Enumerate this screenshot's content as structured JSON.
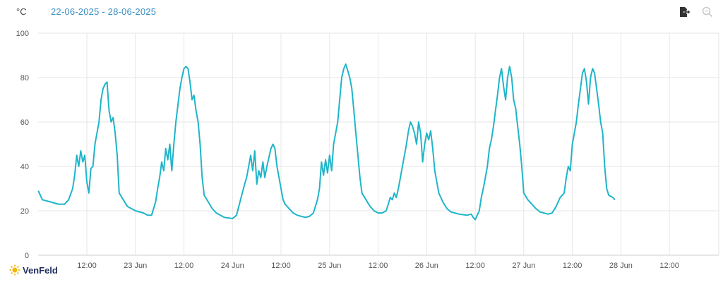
{
  "header": {
    "unit_label": "°C",
    "date_range": "22-06-2025  -  28-06-2025"
  },
  "toolbar": {
    "export_icon": "export-icon",
    "zoom_icon": "zoom-icon"
  },
  "logo": {
    "text": "VenFeld",
    "icon": "sun-icon"
  },
  "colors": {
    "line": "#1fb5c9",
    "grid": "#e6e6e6",
    "axis_text": "#555555",
    "logo_sun": "#f5b400",
    "header_link": "#3a8fc4"
  },
  "chart_data": {
    "type": "line",
    "title": "",
    "xlabel": "",
    "ylabel": "°C",
    "ylim": [
      0,
      100
    ],
    "yticks": [
      0,
      20,
      40,
      60,
      80,
      100
    ],
    "xlim": [
      0,
      168
    ],
    "x_unit": "hours from 22-06-2025 00:00",
    "xticks": [
      {
        "x": 36,
        "label": "12:00"
      },
      {
        "x": 48,
        "label": "23 Jun"
      },
      {
        "x": 60,
        "label": "12:00"
      },
      {
        "x": 72,
        "label": "24 Jun"
      },
      {
        "x": 84,
        "label": "12:00"
      },
      {
        "x": 96,
        "label": "25 Jun"
      },
      {
        "x": 108,
        "label": "12:00"
      },
      {
        "x": 120,
        "label": "26 Jun"
      },
      {
        "x": 132,
        "label": "12:00"
      },
      {
        "x": 144,
        "label": "27 Jun"
      },
      {
        "x": 156,
        "label": "12:00"
      },
      {
        "x": 168,
        "label": "28 Jun"
      },
      {
        "x": 180,
        "label": "12:00"
      }
    ],
    "grid": true,
    "series": [
      {
        "name": "",
        "points": [
          [
            24,
            29
          ],
          [
            25,
            25
          ],
          [
            27,
            24
          ],
          [
            29,
            23
          ],
          [
            30.5,
            23
          ],
          [
            31.5,
            25
          ],
          [
            32.5,
            30
          ],
          [
            33,
            36
          ],
          [
            33.5,
            45
          ],
          [
            34,
            40
          ],
          [
            34.5,
            47
          ],
          [
            35,
            42
          ],
          [
            35.5,
            45
          ],
          [
            36,
            33
          ],
          [
            36.5,
            28
          ],
          [
            37,
            39
          ],
          [
            37.5,
            40
          ],
          [
            38,
            50
          ],
          [
            39,
            60
          ],
          [
            39.5,
            70
          ],
          [
            40,
            75
          ],
          [
            40.5,
            77
          ],
          [
            41,
            78
          ],
          [
            41.5,
            65
          ],
          [
            42,
            60
          ],
          [
            42.5,
            62
          ],
          [
            43,
            55
          ],
          [
            43.5,
            45
          ],
          [
            44,
            28
          ],
          [
            45,
            25
          ],
          [
            46,
            22
          ],
          [
            48,
            20
          ],
          [
            50,
            19
          ],
          [
            51,
            18
          ],
          [
            52,
            18
          ],
          [
            53,
            24
          ],
          [
            53.5,
            30
          ],
          [
            54,
            35
          ],
          [
            54.5,
            42
          ],
          [
            55,
            38
          ],
          [
            55.5,
            48
          ],
          [
            56,
            43
          ],
          [
            56.5,
            50
          ],
          [
            57,
            38
          ],
          [
            57.5,
            50
          ],
          [
            58,
            60
          ],
          [
            59,
            75
          ],
          [
            59.5,
            80
          ],
          [
            60,
            84
          ],
          [
            60.5,
            85
          ],
          [
            61,
            84
          ],
          [
            61.5,
            78
          ],
          [
            62,
            70
          ],
          [
            62.5,
            72
          ],
          [
            63,
            65
          ],
          [
            63.5,
            60
          ],
          [
            64,
            50
          ],
          [
            64.5,
            35
          ],
          [
            65,
            27
          ],
          [
            66,
            24
          ],
          [
            67,
            21
          ],
          [
            68,
            19
          ],
          [
            70,
            17
          ],
          [
            72,
            16.5
          ],
          [
            73,
            18
          ],
          [
            74,
            25
          ],
          [
            75,
            32
          ],
          [
            75.5,
            35
          ],
          [
            76,
            40
          ],
          [
            76.5,
            45
          ],
          [
            77,
            38
          ],
          [
            77.5,
            47
          ],
          [
            78,
            32
          ],
          [
            78.5,
            38
          ],
          [
            79,
            35
          ],
          [
            79.5,
            42
          ],
          [
            80,
            35
          ],
          [
            80.5,
            40
          ],
          [
            81,
            44
          ],
          [
            81.5,
            48
          ],
          [
            82,
            50
          ],
          [
            82.5,
            48
          ],
          [
            83,
            40
          ],
          [
            84,
            30
          ],
          [
            84.5,
            25
          ],
          [
            85,
            23
          ],
          [
            86,
            21
          ],
          [
            87,
            19
          ],
          [
            88,
            18
          ],
          [
            90,
            17
          ],
          [
            91,
            17.5
          ],
          [
            92,
            19
          ],
          [
            92.5,
            22
          ],
          [
            93,
            25
          ],
          [
            93.5,
            30
          ],
          [
            94,
            42
          ],
          [
            94.5,
            36
          ],
          [
            95,
            43
          ],
          [
            95.5,
            37
          ],
          [
            96,
            45
          ],
          [
            96.5,
            38
          ],
          [
            97,
            50
          ],
          [
            97.5,
            55
          ],
          [
            98,
            60
          ],
          [
            98.5,
            70
          ],
          [
            99,
            80
          ],
          [
            99.5,
            84
          ],
          [
            100,
            86
          ],
          [
            100.5,
            83
          ],
          [
            101,
            80
          ],
          [
            101.5,
            75
          ],
          [
            102,
            65
          ],
          [
            102.5,
            55
          ],
          [
            103,
            45
          ],
          [
            103.5,
            35
          ],
          [
            104,
            28
          ],
          [
            105,
            25
          ],
          [
            106,
            22
          ],
          [
            107,
            20
          ],
          [
            108,
            19
          ],
          [
            109,
            19
          ],
          [
            110,
            20
          ],
          [
            110.5,
            23
          ],
          [
            111,
            26
          ],
          [
            111.5,
            25
          ],
          [
            112,
            28
          ],
          [
            112.5,
            26
          ],
          [
            113,
            30
          ],
          [
            113.5,
            35
          ],
          [
            114,
            40
          ],
          [
            114.5,
            45
          ],
          [
            115,
            50
          ],
          [
            115.5,
            56
          ],
          [
            116,
            60
          ],
          [
            116.5,
            58
          ],
          [
            117,
            55
          ],
          [
            117.5,
            50
          ],
          [
            118,
            60
          ],
          [
            118.5,
            55
          ],
          [
            119,
            42
          ],
          [
            119.5,
            50
          ],
          [
            120,
            55
          ],
          [
            120.5,
            52
          ],
          [
            121,
            56
          ],
          [
            121.5,
            48
          ],
          [
            122,
            38
          ],
          [
            123,
            28
          ],
          [
            124,
            24
          ],
          [
            125,
            21
          ],
          [
            126,
            19.5
          ],
          [
            128,
            18.5
          ],
          [
            130,
            18
          ],
          [
            131,
            18.5
          ],
          [
            131.5,
            17
          ],
          [
            132,
            16
          ],
          [
            132.5,
            18
          ],
          [
            133,
            20
          ],
          [
            133.5,
            26
          ],
          [
            134,
            30
          ],
          [
            134.5,
            35
          ],
          [
            135,
            40
          ],
          [
            135.5,
            48
          ],
          [
            136,
            52
          ],
          [
            136.5,
            58
          ],
          [
            137,
            65
          ],
          [
            137.5,
            72
          ],
          [
            138,
            80
          ],
          [
            138.5,
            84
          ],
          [
            139,
            76
          ],
          [
            139.5,
            70
          ],
          [
            140,
            80
          ],
          [
            140.5,
            85
          ],
          [
            141,
            80
          ],
          [
            141.5,
            70
          ],
          [
            142,
            66
          ],
          [
            142.5,
            58
          ],
          [
            143,
            50
          ],
          [
            143.5,
            40
          ],
          [
            144,
            28
          ],
          [
            145,
            25
          ],
          [
            146,
            23
          ],
          [
            147,
            21
          ],
          [
            148,
            19.5
          ],
          [
            150,
            18.5
          ],
          [
            151,
            19
          ],
          [
            152,
            22
          ],
          [
            153,
            26
          ],
          [
            154,
            28
          ],
          [
            154.5,
            35
          ],
          [
            155,
            40
          ],
          [
            155.5,
            38
          ],
          [
            156,
            50
          ],
          [
            156.5,
            55
          ],
          [
            157,
            60
          ],
          [
            157.5,
            68
          ],
          [
            158,
            75
          ],
          [
            158.5,
            82
          ],
          [
            159,
            84
          ],
          [
            159.5,
            78
          ],
          [
            160,
            68
          ],
          [
            160.5,
            80
          ],
          [
            161,
            84
          ],
          [
            161.5,
            82
          ],
          [
            162,
            75
          ],
          [
            162.5,
            68
          ],
          [
            163,
            60
          ],
          [
            163.5,
            55
          ],
          [
            164,
            40
          ],
          [
            164.5,
            30
          ],
          [
            165,
            27
          ],
          [
            166,
            26
          ],
          [
            166.5,
            25
          ]
        ]
      }
    ],
    "x_offset_hours": 24
  }
}
